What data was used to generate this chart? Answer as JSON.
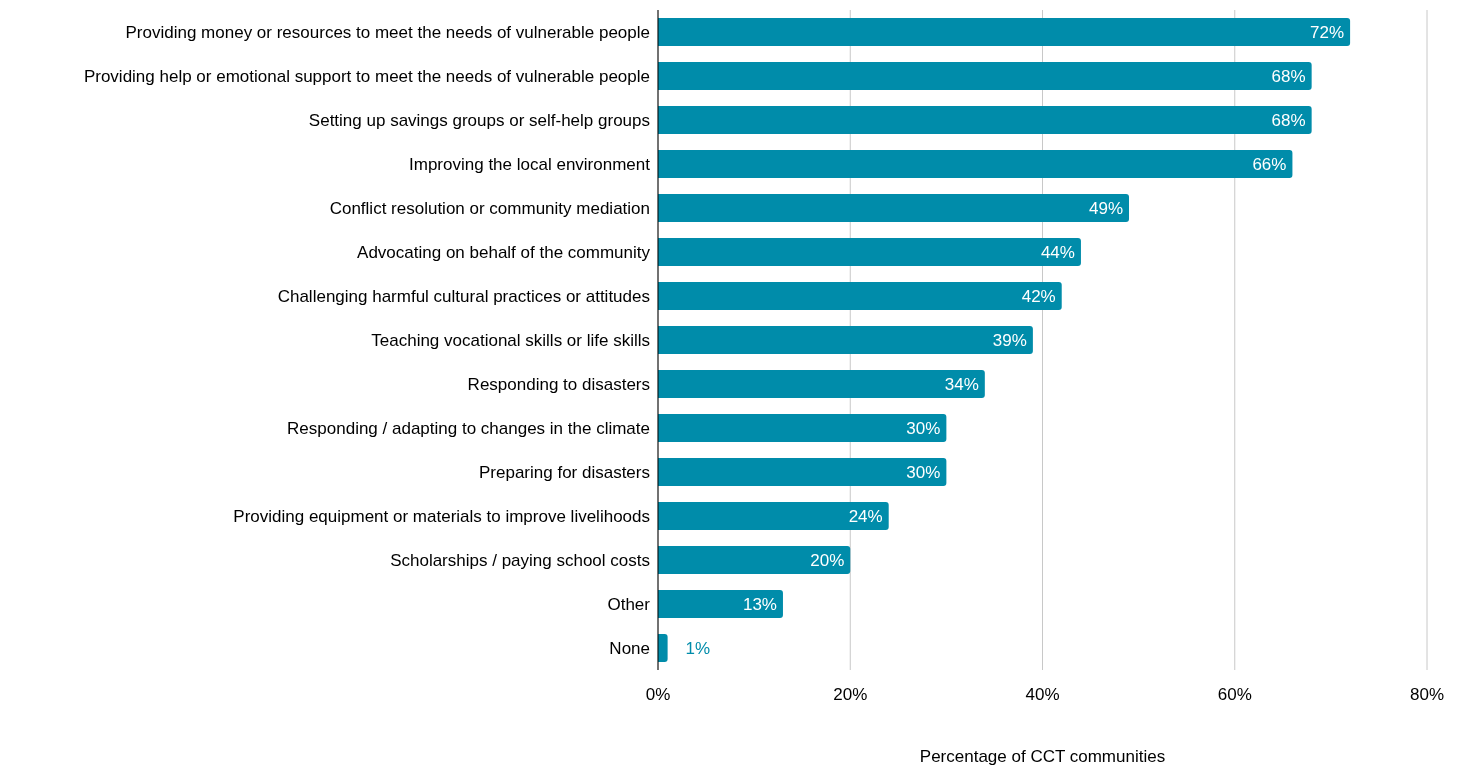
{
  "chart_data": {
    "type": "bar",
    "orientation": "horizontal",
    "xlabel": "Percentage of CCT communities",
    "categories": [
      "Providing money or resources to meet the needs of vulnerable people",
      "Providing help or emotional support to meet the needs of vulnerable people",
      "Setting up savings groups or self-help groups",
      "Improving the local environment",
      "Conflict resolution or community mediation",
      "Advocating on behalf of the community",
      "Challenging harmful cultural practices or attitudes",
      "Teaching vocational skills or life skills",
      "Responding to disasters",
      "Responding / adapting to changes in the climate",
      "Preparing for disasters",
      "Providing equipment or materials to improve livelihoods",
      "Scholarships / paying school costs",
      "Other",
      "None"
    ],
    "values": [
      72,
      68,
      68,
      66,
      49,
      44,
      42,
      39,
      34,
      30,
      30,
      24,
      20,
      13,
      1
    ],
    "value_labels": [
      "72%",
      "68%",
      "68%",
      "66%",
      "49%",
      "44%",
      "42%",
      "39%",
      "34%",
      "30%",
      "30%",
      "24%",
      "20%",
      "13%",
      "1%"
    ],
    "color": "#008caa",
    "xlim": [
      0,
      80
    ],
    "xticks": [
      {
        "value": 0,
        "label": "0%"
      },
      {
        "value": 20,
        "label": "20%"
      },
      {
        "value": 40,
        "label": "40%"
      },
      {
        "value": 60,
        "label": "60%"
      },
      {
        "value": 80,
        "label": "80%"
      }
    ],
    "grid": "x",
    "legend": false
  }
}
